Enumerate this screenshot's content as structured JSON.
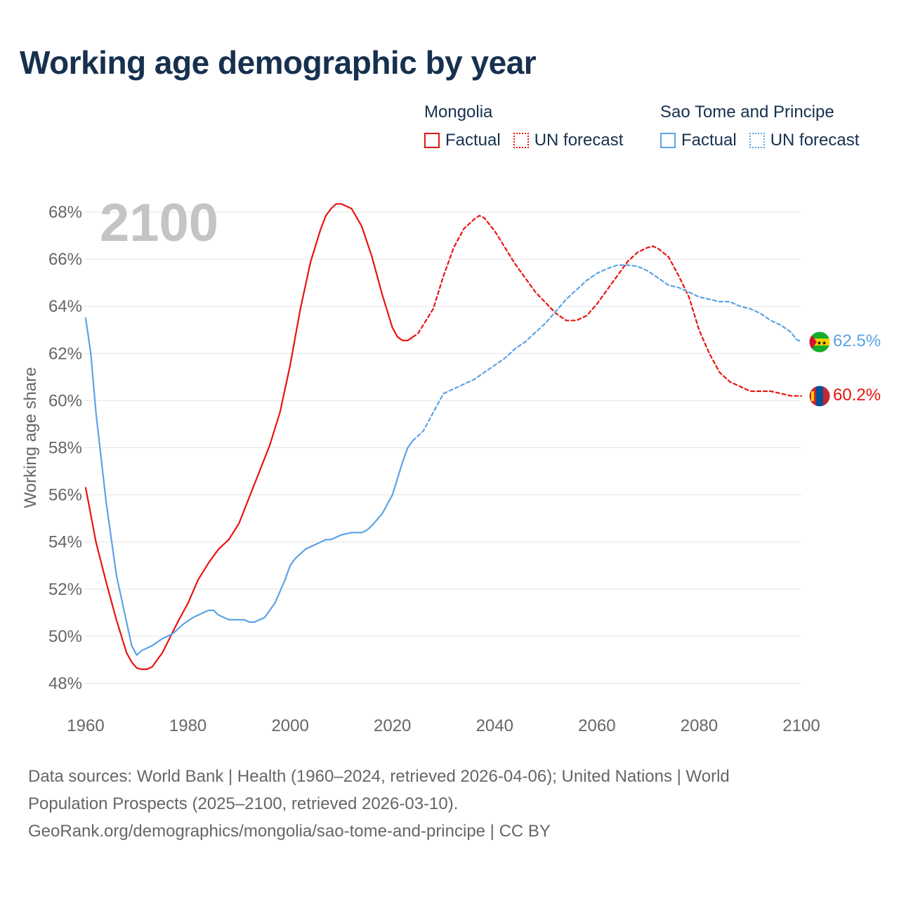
{
  "title": "Working age demographic by year",
  "legend": {
    "groups": [
      {
        "name": "Mongolia",
        "color": "#e8140f",
        "factual_label": "Factual",
        "forecast_label": "UN forecast"
      },
      {
        "name": "Sao Tome and Principe",
        "color": "#5ba3e6",
        "factual_label": "Factual",
        "forecast_label": "UN forecast"
      }
    ]
  },
  "year_watermark": "2100",
  "footer": {
    "line1": "Data sources: World Bank | Health (1960–2024, retrieved 2026-04-06); United Nations | World",
    "line2": "Population Prospects (2025–2100, retrieved 2026-03-10).",
    "line3": "GeoRank.org/demographics/mongolia/sao-tome-and-principe | CC BY"
  },
  "chart_data": {
    "type": "line",
    "title": "Working age demographic by year",
    "xlabel": "",
    "ylabel": "Working age share",
    "xlim": [
      1960,
      2100
    ],
    "ylim": [
      47.5,
      68.5
    ],
    "x_ticks": [
      "1960",
      "1980",
      "2000",
      "2020",
      "2040",
      "2060",
      "2080",
      "2100"
    ],
    "x_tick_values": [
      1960,
      1980,
      2000,
      2020,
      2040,
      2060,
      2080,
      2100
    ],
    "y_ticks": [
      "48%",
      "50%",
      "52%",
      "54%",
      "56%",
      "58%",
      "60%",
      "62%",
      "64%",
      "66%",
      "68%"
    ],
    "y_tick_values": [
      48,
      50,
      52,
      54,
      56,
      58,
      60,
      62,
      64,
      66,
      68
    ],
    "grid": true,
    "series": [
      {
        "name": "Mongolia",
        "color": "#e8140f",
        "end_label": "60.2%",
        "factual": {
          "x": [
            1960,
            1962,
            1964,
            1966,
            1968,
            1969,
            1970,
            1971,
            1972,
            1973,
            1975,
            1978,
            1980,
            1982,
            1984,
            1986,
            1988,
            1990,
            1992,
            1994,
            1996,
            1998,
            2000,
            2002,
            2004,
            2006,
            2007,
            2008,
            2009,
            2010,
            2012,
            2014,
            2016,
            2018,
            2020,
            2021,
            2022,
            2023,
            2024
          ],
          "values": [
            56.3,
            54.0,
            52.3,
            50.7,
            49.3,
            48.9,
            48.65,
            48.6,
            48.6,
            48.7,
            49.3,
            50.6,
            51.4,
            52.4,
            53.1,
            53.7,
            54.1,
            54.8,
            55.9,
            57.0,
            58.1,
            59.5,
            61.5,
            63.9,
            65.9,
            67.3,
            67.85,
            68.15,
            68.35,
            68.35,
            68.15,
            67.4,
            66.1,
            64.5,
            63.1,
            62.7,
            62.55,
            62.55,
            62.7
          ],
          "style": "solid"
        },
        "forecast": {
          "x": [
            2024,
            2025,
            2028,
            2030,
            2032,
            2034,
            2036,
            2037,
            2038,
            2040,
            2044,
            2048,
            2052,
            2054,
            2056,
            2058,
            2060,
            2062,
            2064,
            2066,
            2068,
            2070,
            2071,
            2072,
            2074,
            2076,
            2078,
            2080,
            2082,
            2084,
            2086,
            2088,
            2090,
            2092,
            2094,
            2096,
            2098,
            2100
          ],
          "values": [
            62.7,
            62.85,
            63.9,
            65.3,
            66.5,
            67.3,
            67.7,
            67.85,
            67.75,
            67.2,
            65.8,
            64.6,
            63.7,
            63.4,
            63.4,
            63.6,
            64.1,
            64.7,
            65.3,
            65.9,
            66.3,
            66.5,
            66.55,
            66.45,
            66.1,
            65.3,
            64.4,
            63.0,
            62.0,
            61.2,
            60.8,
            60.6,
            60.4,
            60.4,
            60.4,
            60.3,
            60.2,
            60.2
          ],
          "style": "dashed"
        }
      },
      {
        "name": "Sao Tome and Principe",
        "color": "#5ba3e6",
        "end_label": "62.5%",
        "factual": {
          "x": [
            1960,
            1961,
            1962,
            1964,
            1966,
            1968,
            1969,
            1970,
            1971,
            1972,
            1973,
            1975,
            1977,
            1979,
            1981,
            1983,
            1984,
            1985,
            1986,
            1988,
            1990,
            1991,
            1992,
            1993,
            1994,
            1995,
            1997,
            1999,
            2000,
            2001,
            2003,
            2005,
            2007,
            2008,
            2009,
            2010,
            2012,
            2014,
            2015,
            2016,
            2018,
            2020,
            2022,
            2023,
            2024
          ],
          "values": [
            63.5,
            62.0,
            59.5,
            55.7,
            52.6,
            50.6,
            49.6,
            49.2,
            49.4,
            49.5,
            49.6,
            49.9,
            50.1,
            50.5,
            50.8,
            51.0,
            51.1,
            51.1,
            50.9,
            50.7,
            50.7,
            50.7,
            50.6,
            50.6,
            50.7,
            50.8,
            51.4,
            52.4,
            53.0,
            53.3,
            53.7,
            53.9,
            54.1,
            54.1,
            54.2,
            54.3,
            54.4,
            54.4,
            54.5,
            54.7,
            55.2,
            56.0,
            57.4,
            58.0,
            58.3
          ],
          "style": "solid"
        },
        "forecast": {
          "x": [
            2024,
            2026,
            2028,
            2030,
            2032,
            2034,
            2036,
            2038,
            2040,
            2042,
            2044,
            2046,
            2048,
            2050,
            2052,
            2054,
            2056,
            2058,
            2060,
            2062,
            2064,
            2066,
            2068,
            2070,
            2072,
            2074,
            2076,
            2078,
            2080,
            2082,
            2084,
            2086,
            2088,
            2090,
            2092,
            2094,
            2096,
            2098,
            2099,
            2100
          ],
          "values": [
            58.3,
            58.7,
            59.5,
            60.3,
            60.5,
            60.7,
            60.9,
            61.2,
            61.5,
            61.8,
            62.2,
            62.5,
            62.9,
            63.3,
            63.8,
            64.3,
            64.7,
            65.1,
            65.4,
            65.6,
            65.75,
            65.75,
            65.7,
            65.5,
            65.2,
            64.9,
            64.8,
            64.6,
            64.4,
            64.3,
            64.2,
            64.2,
            64.0,
            63.9,
            63.7,
            63.4,
            63.2,
            62.9,
            62.6,
            62.5
          ],
          "style": "dashed"
        }
      }
    ]
  }
}
